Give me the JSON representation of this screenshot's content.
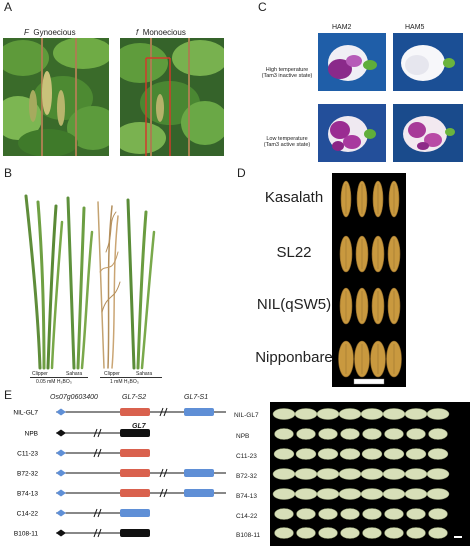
{
  "panel_a": {
    "letter": "A",
    "left_caption": {
      "symbol": "F",
      "text": "Gynoecious"
    },
    "right_caption": {
      "symbol": "f",
      "text": "Monoecious"
    }
  },
  "panel_c": {
    "letter": "C",
    "col_headers": [
      "HAM2",
      "HAM5"
    ],
    "rows": [
      {
        "line1": "High temperature",
        "line2": "(Tam3 inactive state)"
      },
      {
        "line1": "Low temperature",
        "line2": "(Tam3 active state)"
      }
    ]
  },
  "panel_b": {
    "letter": "B",
    "varieties": [
      "Clipper",
      "Sahara",
      "Clipper",
      "Sahara"
    ],
    "treatments": [
      "0.05 mM H₃BO₃",
      "1 mM H₃BO₃"
    ]
  },
  "panel_d": {
    "letter": "D",
    "labels": [
      "Kasalath",
      "SL22",
      "NIL(qSW5)",
      "Nipponbare"
    ]
  },
  "panel_e": {
    "letter": "E",
    "gene_headers": [
      "Os07g0603400",
      "GL7-S2",
      "GL7-S1"
    ],
    "npb_gene": "GL7",
    "lines": [
      "NIL-GL7",
      "NPB",
      "C11-23",
      "B72-32",
      "B74-13",
      "C14-22",
      "B108-11"
    ],
    "grain_labels": [
      "NIL-GL7",
      "NPB",
      "C11-23",
      "B72-32",
      "B74-13",
      "C14-22",
      "B108-11"
    ],
    "colors": {
      "red": "#d9614e",
      "blue": "#5f8fd6",
      "black": "#111111"
    }
  }
}
